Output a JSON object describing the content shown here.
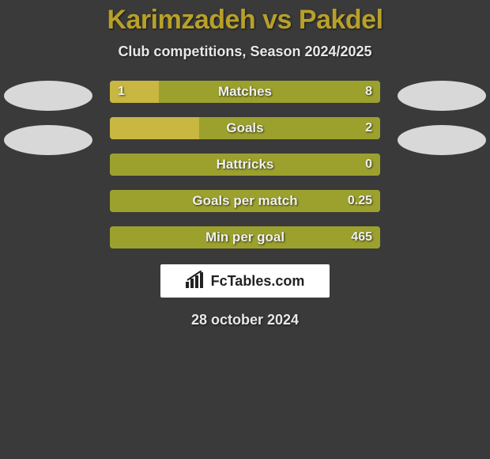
{
  "title": "Karimzadeh vs Pakdel",
  "subtitle": "Club competitions, Season 2024/2025",
  "date": "28 october 2024",
  "brand": "FcTables.com",
  "colors": {
    "background": "#3a3a3a",
    "title": "#b8a029",
    "subtitle": "#e8e8e8",
    "bar_track": "#9ca12e",
    "bar_left_fill": "#c8b740",
    "bar_right_fill": "#9ca12e",
    "bar_label": "#f0f0f0",
    "oval_left1": "#d8d8d8",
    "oval_left2": "#d8d8d8",
    "oval_right1": "#d8d8d8",
    "oval_right2": "#d8d8d8",
    "brand_bg": "#ffffff",
    "brand_text": "#222222"
  },
  "left_ovals": [
    {
      "color": "#d8d8d8"
    },
    {
      "color": "#d8d8d8"
    }
  ],
  "right_ovals": [
    {
      "color": "#d8d8d8"
    },
    {
      "color": "#d8d8d8"
    }
  ],
  "bars": [
    {
      "label": "Matches",
      "left_value": "1",
      "right_value": "8",
      "left_pct": 18,
      "right_pct": 82,
      "track_color": "#9ca12e",
      "left_fill_color": "#c8b740",
      "right_fill_color": "#9ca12e"
    },
    {
      "label": "Goals",
      "left_value": "",
      "right_value": "2",
      "left_pct": 33,
      "right_pct": 67,
      "track_color": "#9ca12e",
      "left_fill_color": "#c8b740",
      "right_fill_color": "#9ca12e"
    },
    {
      "label": "Hattricks",
      "left_value": "",
      "right_value": "0",
      "left_pct": 0,
      "right_pct": 100,
      "track_color": "#9ca12e",
      "left_fill_color": "#c8b740",
      "right_fill_color": "#9ca12e"
    },
    {
      "label": "Goals per match",
      "left_value": "",
      "right_value": "0.25",
      "left_pct": 0,
      "right_pct": 100,
      "track_color": "#9ca12e",
      "left_fill_color": "#c8b740",
      "right_fill_color": "#9ca12e"
    },
    {
      "label": "Min per goal",
      "left_value": "",
      "right_value": "465",
      "left_pct": 0,
      "right_pct": 100,
      "track_color": "#9ca12e",
      "left_fill_color": "#c8b740",
      "right_fill_color": "#9ca12e"
    }
  ]
}
